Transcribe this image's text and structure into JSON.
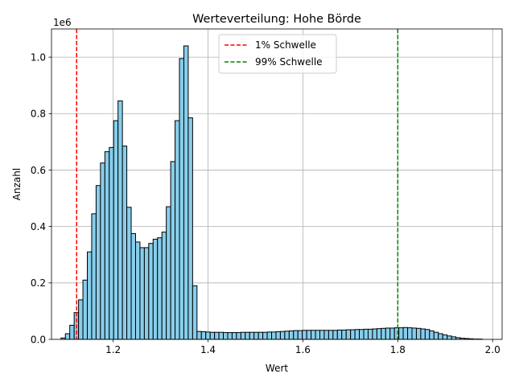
{
  "chart_data": {
    "type": "bar",
    "title": "Werteverteilung: Hohe Börde",
    "xlabel": "Wert",
    "ylabel": "Anzahl",
    "offset_text": "1e6",
    "xlim": [
      1.07,
      2.02
    ],
    "ylim": [
      0,
      1.1
    ],
    "xticks": [
      1.2,
      1.4,
      1.6,
      1.8,
      2.0
    ],
    "xtick_labels": [
      "1.2",
      "1.4",
      "1.6",
      "1.8",
      "2.0"
    ],
    "yticks": [
      0.0,
      0.2,
      0.4,
      0.6,
      0.8,
      1.0
    ],
    "ytick_labels": [
      "0.0",
      "0.2",
      "0.4",
      "0.6",
      "0.8",
      "1.0"
    ],
    "grid": true,
    "legend_position": "top-center",
    "bar_color": "#87ceeb",
    "bar_edge_color": "#000000",
    "bin_start": 1.09,
    "bin_width": 0.00925,
    "values": [
      0.005,
      0.02,
      0.05,
      0.095,
      0.14,
      0.21,
      0.31,
      0.445,
      0.545,
      0.625,
      0.665,
      0.68,
      0.775,
      0.845,
      0.685,
      0.468,
      0.375,
      0.345,
      0.325,
      0.325,
      0.34,
      0.355,
      0.36,
      0.38,
      0.47,
      0.63,
      0.775,
      0.995,
      1.04,
      0.785,
      0.19,
      0.028,
      0.027,
      0.026,
      0.025,
      0.025,
      0.025,
      0.024,
      0.024,
      0.024,
      0.024,
      0.025,
      0.025,
      0.025,
      0.025,
      0.025,
      0.025,
      0.026,
      0.026,
      0.027,
      0.028,
      0.029,
      0.03,
      0.031,
      0.031,
      0.032,
      0.032,
      0.032,
      0.032,
      0.032,
      0.032,
      0.032,
      0.032,
      0.033,
      0.033,
      0.034,
      0.034,
      0.035,
      0.035,
      0.036,
      0.036,
      0.037,
      0.038,
      0.039,
      0.04,
      0.04,
      0.041,
      0.041,
      0.042,
      0.041,
      0.04,
      0.039,
      0.037,
      0.035,
      0.03,
      0.025,
      0.02,
      0.016,
      0.012,
      0.009,
      0.006,
      0.004,
      0.003,
      0.002,
      0.001,
      0.001
    ],
    "vlines": [
      {
        "name": "1% Schwelle",
        "x": 1.123,
        "color": "#ff0000"
      },
      {
        "name": "99% Schwelle",
        "x": 1.8,
        "color": "#008000"
      }
    ]
  }
}
